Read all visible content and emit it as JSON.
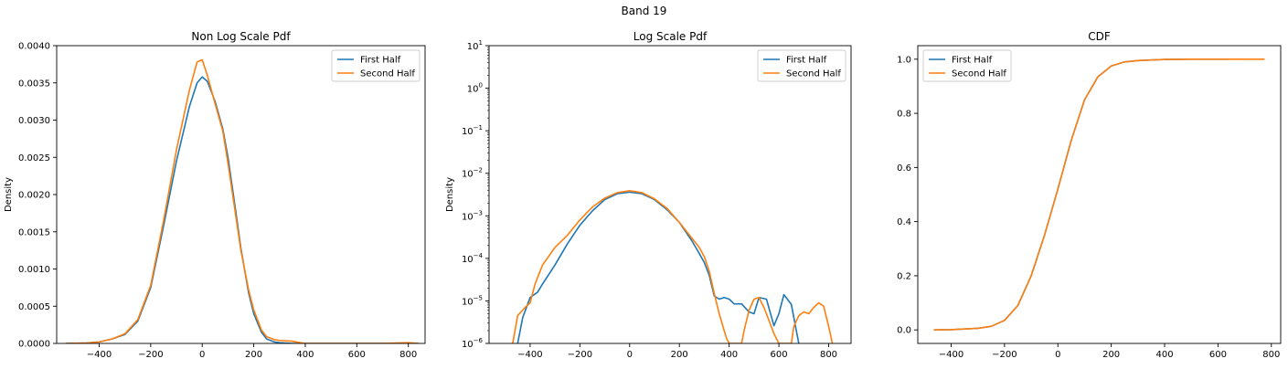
{
  "figure": {
    "title": "Band 19"
  },
  "colors": {
    "first_half": "#1f77b4",
    "second_half": "#ff7f0e",
    "axes": "#000000",
    "legend_border": "#cccccc"
  },
  "chart_data": [
    {
      "type": "line",
      "title": "Non Log Scale Pdf",
      "xlabel": "",
      "ylabel": "Density",
      "yscale": "linear",
      "xlim": [
        -565,
        865
      ],
      "ylim": [
        0,
        0.004
      ],
      "xticks": [
        -400,
        -200,
        0,
        200,
        400,
        600,
        800
      ],
      "xtick_labels": [
        "−400",
        "−200",
        "0",
        "200",
        "400",
        "600",
        "800"
      ],
      "yticks": [
        0,
        0.0005,
        0.001,
        0.0015,
        0.002,
        0.0025,
        0.003,
        0.0035,
        0.004
      ],
      "ytick_labels": [
        "0.0000",
        "0.0005",
        "0.0010",
        "0.0015",
        "0.0020",
        "0.0025",
        "0.0030",
        "0.0035",
        "0.0040"
      ],
      "grid": false,
      "legend": "top-right",
      "series": [
        {
          "name": "First Half",
          "x": [
            -530,
            -450,
            -400,
            -350,
            -300,
            -250,
            -200,
            -150,
            -100,
            -50,
            -20,
            0,
            20,
            50,
            80,
            100,
            130,
            150,
            180,
            200,
            230,
            250,
            280,
            300,
            350,
            400,
            500,
            600,
            700,
            800,
            840
          ],
          "y": [
            0,
            5e-06,
            2e-05,
            6e-05,
            0.00012,
            0.0003,
            0.00075,
            0.00158,
            0.00245,
            0.00318,
            0.0035,
            0.00358,
            0.00352,
            0.00325,
            0.00288,
            0.0025,
            0.00178,
            0.00128,
            0.00068,
            0.0004,
            0.00015,
            6e-05,
            2e-05,
            1e-05,
            0,
            0,
            0,
            0,
            0,
            0,
            0
          ]
        },
        {
          "name": "Second Half",
          "x": [
            -530,
            -450,
            -400,
            -350,
            -300,
            -250,
            -200,
            -150,
            -100,
            -50,
            -20,
            0,
            20,
            50,
            80,
            100,
            130,
            150,
            180,
            200,
            230,
            250,
            280,
            300,
            350,
            380,
            400,
            500,
            600,
            700,
            800,
            840
          ],
          "y": [
            0,
            5e-06,
            2e-05,
            6e-05,
            0.00013,
            0.00032,
            0.00078,
            0.00165,
            0.0026,
            0.0034,
            0.00378,
            0.00381,
            0.0036,
            0.00322,
            0.00285,
            0.00242,
            0.00172,
            0.00125,
            0.00072,
            0.00045,
            0.00018,
            9e-05,
            5e-05,
            4e-05,
            3e-05,
            1e-05,
            0,
            0,
            0,
            0,
            1e-05,
            0
          ]
        }
      ]
    },
    {
      "type": "line",
      "title": "Log Scale Pdf",
      "xlabel": "",
      "ylabel": "Density",
      "yscale": "log",
      "xlim": [
        -565,
        890
      ],
      "ylim": [
        1e-06,
        10
      ],
      "xticks": [
        -400,
        -200,
        0,
        200,
        400,
        600,
        800
      ],
      "xtick_labels": [
        "−400",
        "−200",
        "0",
        "200",
        "400",
        "600",
        "800"
      ],
      "yticks": [
        1e-06,
        1e-05,
        0.0001,
        0.001,
        0.01,
        0.1,
        1,
        10
      ],
      "ytick_exponents": [
        "−6",
        "−5",
        "−4",
        "−3",
        "−2",
        "−1",
        "0",
        "1"
      ],
      "ytick_base": "10",
      "grid": false,
      "legend": "top-right",
      "series": [
        {
          "name": "First Half",
          "x": [
            -450,
            -430,
            -400,
            -370,
            -350,
            -300,
            -250,
            -200,
            -150,
            -100,
            -50,
            0,
            50,
            100,
            150,
            200,
            250,
            280,
            300,
            320,
            340,
            360,
            380,
            400,
            420,
            450,
            480,
            500,
            520,
            550,
            580,
            600,
            620,
            650,
            670,
            680
          ],
          "y": [
            1e-06,
            4e-06,
            1.2e-05,
            1.6e-05,
            2.5e-05,
            7e-05,
            0.00022,
            0.0006,
            0.0013,
            0.0024,
            0.0033,
            0.0036,
            0.0033,
            0.0024,
            0.0014,
            0.0007,
            0.00026,
            0.00013,
            8e-05,
            4e-05,
            1.3e-05,
            1.1e-05,
            1.2e-05,
            1.1e-05,
            8.5e-06,
            8.5e-06,
            5.5e-06,
            5e-06,
            1.2e-05,
            1.1e-05,
            2.6e-06,
            5e-06,
            1.4e-05,
            8.3e-06,
            2e-06,
            1e-06
          ]
        },
        {
          "name": "Second Half",
          "x": [
            -470,
            -450,
            -420,
            -400,
            -380,
            -350,
            -300,
            -250,
            -200,
            -150,
            -100,
            -50,
            0,
            50,
            100,
            150,
            200,
            250,
            280,
            300,
            320,
            340,
            360,
            380,
            390,
            400,
            450,
            460,
            480,
            500,
            520,
            540,
            560,
            580,
            600,
            650,
            660,
            680,
            700,
            720,
            740,
            760,
            780,
            800,
            815
          ],
          "y": [
            1e-06,
            4.5e-06,
            7e-06,
            9e-06,
            2.5e-05,
            7e-05,
            0.00018,
            0.00035,
            0.0008,
            0.0016,
            0.0026,
            0.0035,
            0.0039,
            0.0035,
            0.0025,
            0.0015,
            0.0007,
            0.0003,
            0.00018,
            0.00011,
            5e-05,
            1.5e-05,
            5e-06,
            2e-06,
            1.3e-06,
            1e-06,
            1e-06,
            2e-06,
            6e-06,
            1.1e-05,
            1.2e-05,
            7e-06,
            3.5e-06,
            1.7e-06,
            1e-06,
            1e-06,
            2.5e-06,
            4.5e-06,
            5.5e-06,
            5e-06,
            7e-06,
            9e-06,
            7.5e-06,
            2.5e-06,
            1e-06
          ]
        }
      ]
    },
    {
      "type": "line",
      "title": "CDF",
      "xlabel": "",
      "ylabel": "",
      "yscale": "linear",
      "xlim": [
        -525,
        835
      ],
      "ylim": [
        -0.05,
        1.05
      ],
      "xticks": [
        -400,
        -200,
        0,
        200,
        400,
        600,
        800
      ],
      "xtick_labels": [
        "−400",
        "−200",
        "0",
        "200",
        "400",
        "600",
        "800"
      ],
      "yticks": [
        0,
        0.2,
        0.4,
        0.6,
        0.8,
        1.0
      ],
      "ytick_labels": [
        "0.0",
        "0.2",
        "0.4",
        "0.6",
        "0.8",
        "1.0"
      ],
      "grid": false,
      "legend": "top-left",
      "series": [
        {
          "name": "First Half",
          "x": [
            -465,
            -400,
            -300,
            -250,
            -200,
            -150,
            -100,
            -50,
            0,
            50,
            100,
            150,
            200,
            250,
            300,
            400,
            500,
            640
          ],
          "y": [
            0,
            0.001,
            0.006,
            0.013,
            0.035,
            0.09,
            0.2,
            0.35,
            0.52,
            0.7,
            0.85,
            0.935,
            0.975,
            0.99,
            0.995,
            0.999,
            1.0,
            1.0
          ]
        },
        {
          "name": "Second Half",
          "x": [
            -465,
            -400,
            -300,
            -250,
            -200,
            -150,
            -100,
            -50,
            0,
            50,
            100,
            150,
            200,
            250,
            300,
            400,
            500,
            640,
            775
          ],
          "y": [
            0,
            0.001,
            0.006,
            0.013,
            0.035,
            0.09,
            0.2,
            0.35,
            0.52,
            0.7,
            0.85,
            0.935,
            0.975,
            0.99,
            0.995,
            0.999,
            1.0,
            1.0,
            1.0
          ]
        }
      ]
    }
  ]
}
